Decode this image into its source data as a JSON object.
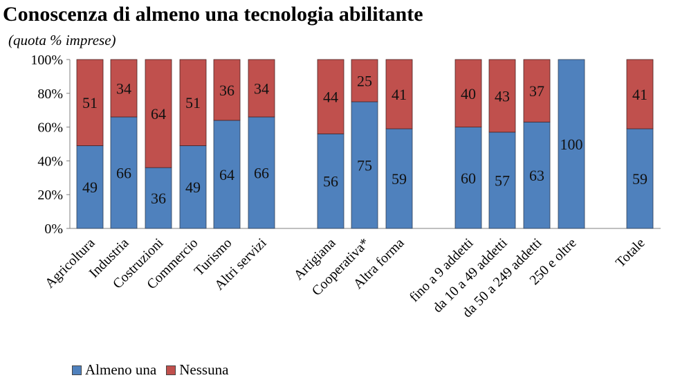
{
  "title": "Conoscenza di almeno una tecnologia abilitante",
  "subtitle": "(quota % imprese)",
  "colors": {
    "almeno_una": "#4F81BD",
    "nessuna": "#C0504D"
  },
  "chart_data": {
    "type": "bar",
    "stacked": true,
    "title": "Conoscenza di almeno una tecnologia abilitante",
    "subtitle": "(quota % imprese)",
    "xlabel": "",
    "ylabel": "",
    "ylim": [
      0,
      100
    ],
    "yticks": [
      "0%",
      "20%",
      "40%",
      "60%",
      "80%",
      "100%"
    ],
    "grid": false,
    "legend_position": "bottom-left",
    "categories": [
      "Agricoltura",
      "Industria",
      "Costruzioni",
      "Commercio",
      "Turismo",
      "Altri servizi",
      "Artigiana",
      "Cooperativa*",
      "Altra forma",
      "fino a 9 addetti",
      "da 10 a 49 addetti",
      "da 50 a 249 addetti",
      "250 e oltre",
      "Totale"
    ],
    "series": [
      {
        "name": "Almeno una",
        "values": [
          49,
          66,
          36,
          49,
          64,
          66,
          56,
          75,
          59,
          60,
          57,
          63,
          100,
          59
        ]
      },
      {
        "name": "Nessuna",
        "values": [
          51,
          34,
          64,
          51,
          36,
          34,
          44,
          25,
          41,
          40,
          43,
          37,
          0,
          41
        ]
      }
    ]
  }
}
